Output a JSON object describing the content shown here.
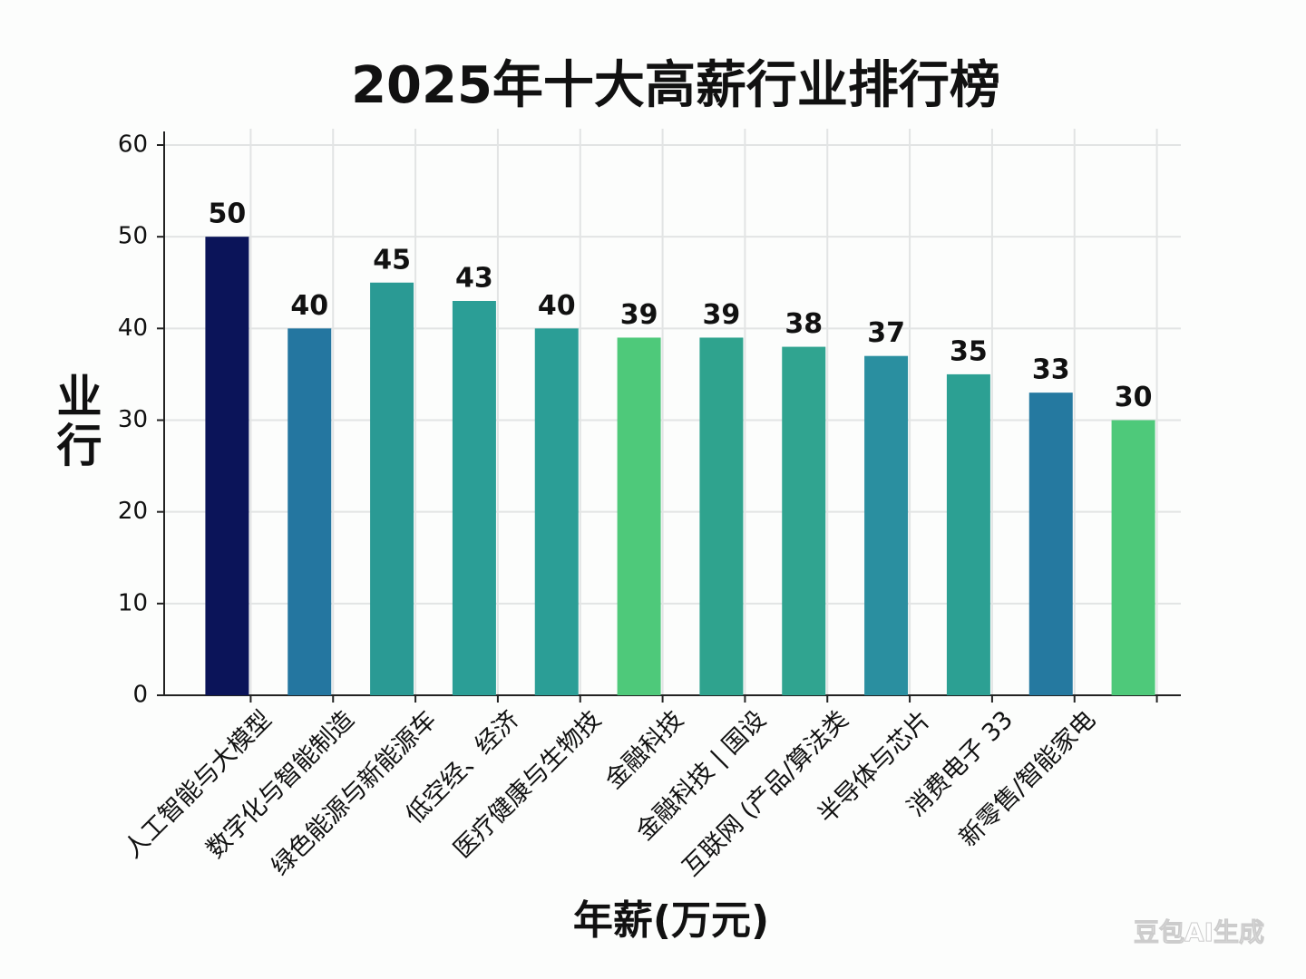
{
  "chart_data": {
    "type": "bar",
    "title": "2025年十大高薪行业排行榜",
    "x_label": "年薪(万元)",
    "y_label": "业行",
    "watermark": "豆包AI生成",
    "categories": [
      "人工智能与大模型",
      "数字化与智能制造",
      "绿色能源与新能源车",
      "低空经、经济",
      "医疗健康与生物技",
      "金融科技",
      "金融科技 | 国设",
      "互联网 (产品/算法类",
      "半导体与芯片",
      "消费电子 33",
      "新零售/智能家电",
      null
    ],
    "values": [
      50,
      40,
      45,
      43,
      40,
      39,
      39,
      38,
      37,
      35,
      33,
      30
    ],
    "colors": [
      "#0b1459",
      "#2476a0",
      "#2a9a94",
      "#2b9e96",
      "#2b9e96",
      "#4ec97a",
      "#2fa38e",
      "#30a490",
      "#2a8fa0",
      "#2ca093",
      "#2579a0",
      "#4ec97a"
    ],
    "ylim": [
      0,
      60
    ],
    "yticks": [
      0,
      10,
      20,
      30,
      40,
      50,
      60
    ],
    "grid": true
  }
}
